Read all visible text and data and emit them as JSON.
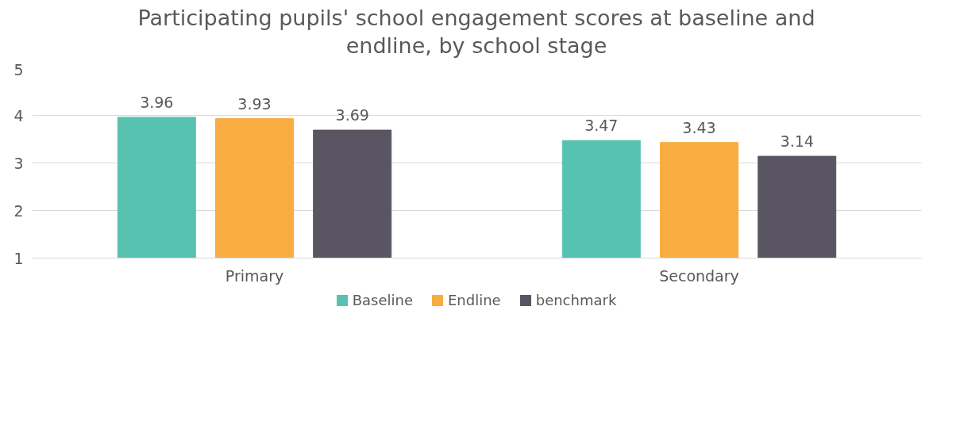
{
  "chart_data": {
    "type": "bar",
    "title": "Participating pupils' school engagement scores at baseline and endline, by school stage",
    "categories": [
      "Primary",
      "Secondary"
    ],
    "series": [
      {
        "name": "Baseline",
        "color": "#57c2b0",
        "values": [
          3.96,
          3.47
        ]
      },
      {
        "name": "Endline",
        "color": "#f9ac42",
        "values": [
          3.93,
          3.43
        ]
      },
      {
        "name": "benchmark",
        "color": "#5a5562",
        "values": [
          3.69,
          3.14
        ]
      }
    ],
    "ylim": [
      1,
      5
    ],
    "yticks": [
      1,
      2,
      3,
      4,
      5
    ],
    "grid": "y",
    "legend": "bottom",
    "data_labels": true
  }
}
